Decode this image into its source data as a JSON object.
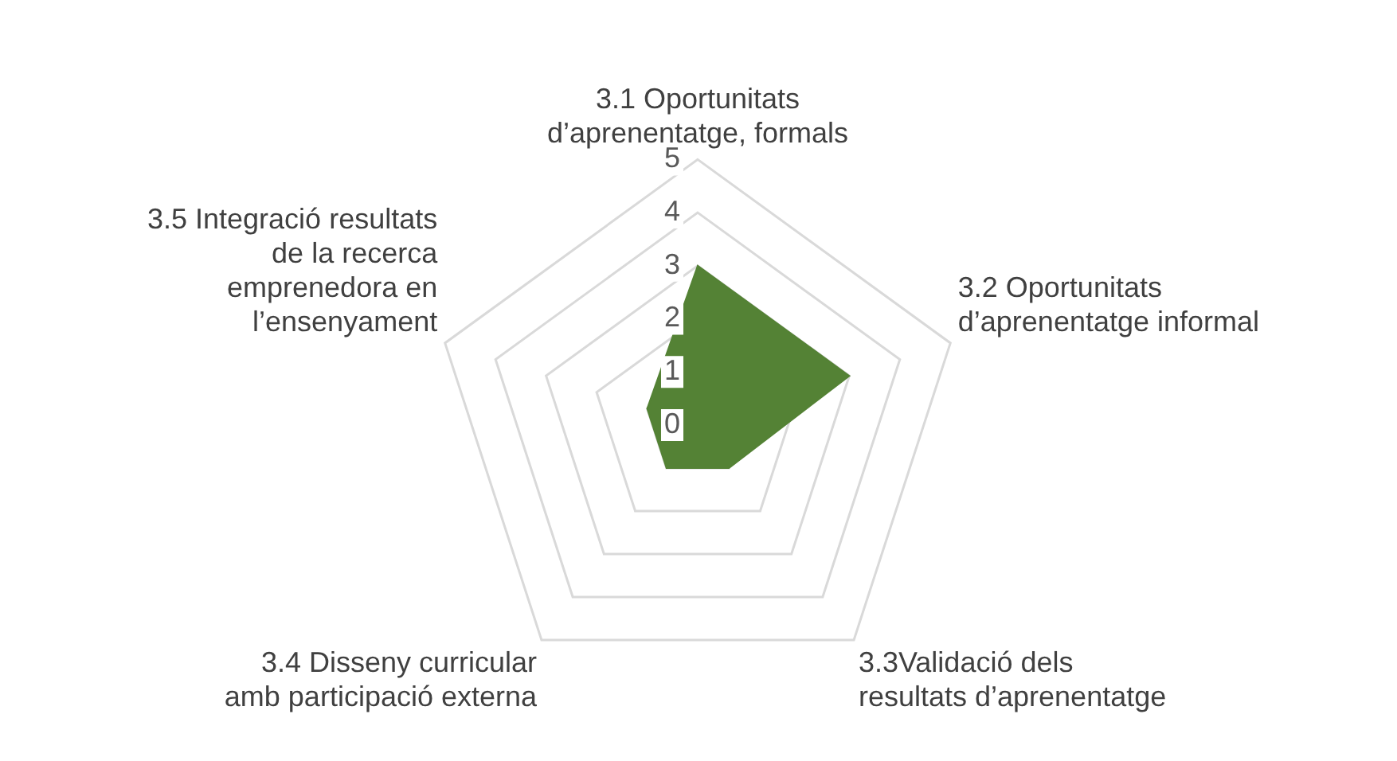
{
  "chart_data": {
    "type": "radar",
    "categories": [
      "3.1 Oportunitats\nd’aprenentatge, formals",
      "3.2 Oportunitats\nd’aprenentatge informal",
      "3.3Validació dels\nresultats d’aprenentatge",
      "3.4 Disseny curricular\namb participació externa",
      "3.5 Integració resultats\nde la recerca\nemprenedora en\nl’ensenyament"
    ],
    "series": [
      {
        "color": "#548235",
        "values": [
          3,
          3,
          1,
          1,
          1
        ]
      }
    ],
    "ylim": [
      0,
      5
    ],
    "yticks": [
      0,
      1,
      2,
      3,
      4,
      5
    ],
    "grid": true,
    "legend": false
  }
}
